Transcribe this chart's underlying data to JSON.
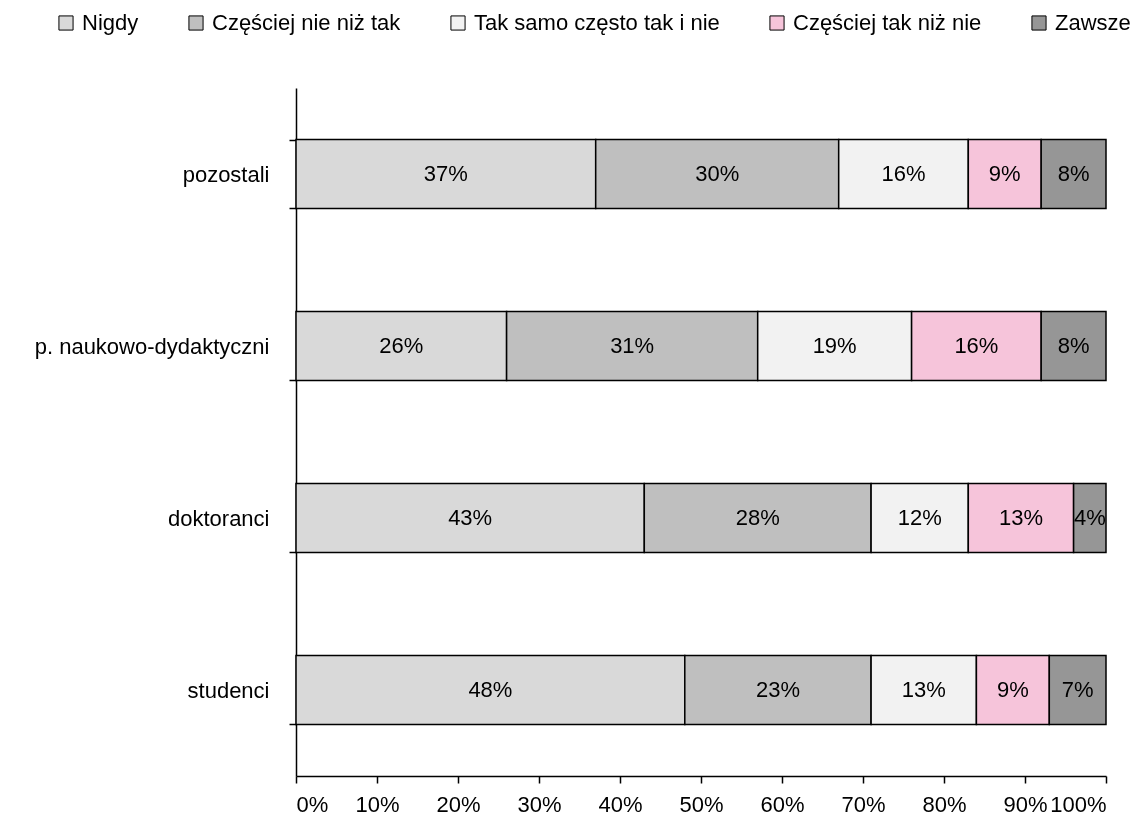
{
  "chart_data": {
    "type": "bar",
    "orientation": "horizontal",
    "stacked": true,
    "legend": "top",
    "categories": [
      "pozostali",
      "p. naukowo-dydaktyczni",
      "doktoranci",
      "studenci"
    ],
    "series": [
      {
        "name": "Nigdy",
        "color": "#d9d9d9",
        "values": [
          37,
          26,
          43,
          48
        ],
        "value_labels": [
          "37%",
          "26%",
          "43%",
          "48%"
        ]
      },
      {
        "name": "Częściej nie niż tak",
        "color": "#bfbfbf",
        "values": [
          30,
          31,
          28,
          23
        ],
        "value_labels": [
          "30%",
          "31%",
          "28%",
          "23%"
        ]
      },
      {
        "name": "Tak samo często tak i nie",
        "color": "#f2f2f2",
        "values": [
          16,
          19,
          12,
          13
        ],
        "value_labels": [
          "16%",
          "19%",
          "12%",
          "13%"
        ]
      },
      {
        "name": "Częściej tak niż nie",
        "color": "#f6c4da",
        "values": [
          9,
          16,
          13,
          9
        ],
        "value_labels": [
          "9%",
          "16%",
          "13%",
          "9%"
        ]
      },
      {
        "name": "Zawsze",
        "color": "#969696",
        "values": [
          8,
          8,
          4,
          7
        ],
        "value_labels": [
          "8%",
          "8%",
          "4%",
          "7%"
        ]
      }
    ],
    "xlim": [
      0,
      100
    ],
    "xticks": [
      {
        "value": 0,
        "label": "0%"
      },
      {
        "value": 10,
        "label": "10%"
      },
      {
        "value": 20,
        "label": "20%"
      },
      {
        "value": 30,
        "label": "30%"
      },
      {
        "value": 40,
        "label": "40%"
      },
      {
        "value": 50,
        "label": "50%"
      },
      {
        "value": 60,
        "label": "60%"
      },
      {
        "value": 70,
        "label": "70%"
      },
      {
        "value": 80,
        "label": "80%"
      },
      {
        "value": 90,
        "label": "90%"
      },
      {
        "value": 100,
        "label": "100%"
      }
    ]
  }
}
